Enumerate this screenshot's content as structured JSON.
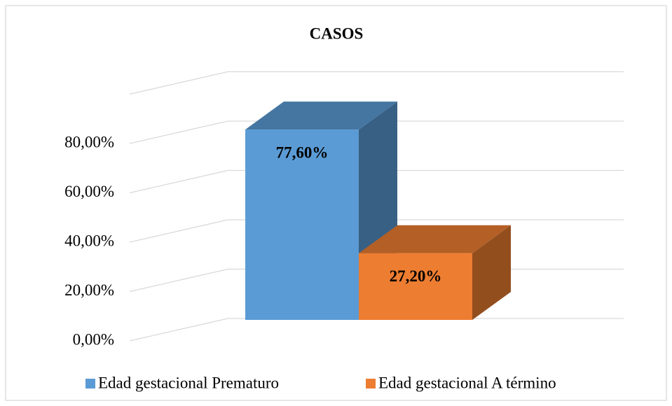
{
  "chart_data": {
    "type": "bar3d",
    "title": "CASOS",
    "categories": [
      null
    ],
    "series": [
      {
        "name": "Edad gestacional Prematuro",
        "color": "#5b9bd5",
        "values": [
          77.6
        ],
        "value_labels": [
          "77,60%"
        ]
      },
      {
        "name": "Edad gestacional A término",
        "color": "#ed7d31",
        "values": [
          27.2
        ],
        "value_labels": [
          "27,20%"
        ]
      }
    ],
    "ylim": [
      0,
      100
    ],
    "yticks": [
      {
        "value": 0,
        "label": "0,00%"
      },
      {
        "value": 20,
        "label": "20,00%"
      },
      {
        "value": 40,
        "label": "40,00%"
      },
      {
        "value": 60,
        "label": "60,00%"
      },
      {
        "value": 80,
        "label": "80,00%"
      }
    ],
    "grid": true,
    "legend": "bottom"
  }
}
